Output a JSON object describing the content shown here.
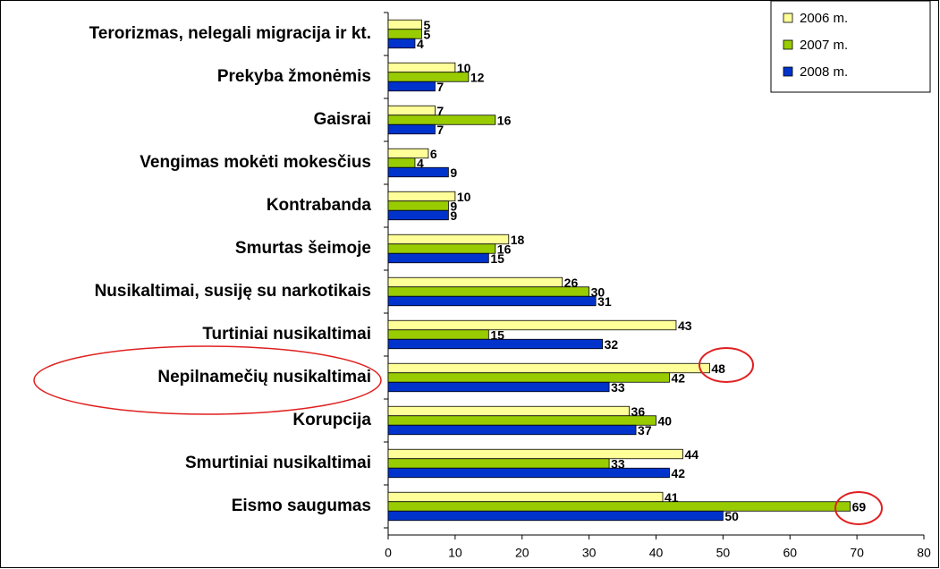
{
  "chart_data": {
    "type": "barh",
    "categories": [
      "Terorizmas, nelegali migracija ir kt.",
      "Prekyba žmonėmis",
      "Gaisrai",
      "Vengimas mokėti mokesčius",
      "Kontrabanda",
      "Smurtas šeimoje",
      "Nusikaltimai, susiję su narkotikais",
      "Turtiniai nusikaltimai",
      "Nepilnamečių nusikaltimai",
      "Korupcija",
      "Smurtiniai nusikaltimai",
      "Eismo saugumas"
    ],
    "series": [
      {
        "name": "2006 m.",
        "color": "#ffff99",
        "values": [
          5,
          10,
          7,
          6,
          10,
          18,
          26,
          43,
          48,
          36,
          44,
          41
        ]
      },
      {
        "name": "2007 m.",
        "color": "#99cc00",
        "values": [
          5,
          12,
          16,
          4,
          9,
          16,
          30,
          15,
          42,
          40,
          33,
          69
        ]
      },
      {
        "name": "2008 m.",
        "color": "#0033cc",
        "values": [
          4,
          7,
          7,
          9,
          9,
          15,
          31,
          32,
          33,
          37,
          42,
          50
        ]
      }
    ],
    "xlim": [
      0,
      80
    ],
    "xticks": [
      0,
      10,
      20,
      30,
      40,
      50,
      60,
      70,
      80
    ],
    "legend": "top-right",
    "grid": false
  }
}
